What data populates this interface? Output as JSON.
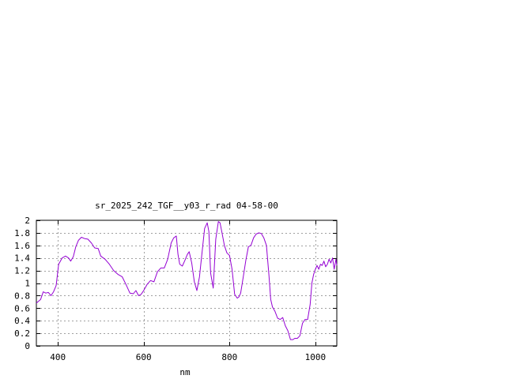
{
  "chart_data": {
    "type": "line",
    "title": "sr_2025_242_TGF__y03_r_rad 04-58-00",
    "xlabel": "nm",
    "ylabel": "",
    "xlim": [
      350,
      1050
    ],
    "ylim": [
      0,
      2
    ],
    "xticks": [
      "400",
      "600",
      "800",
      "1000"
    ],
    "xtick_values": [
      400,
      600,
      800,
      1000
    ],
    "yticks": [
      "0",
      "0.2",
      "0.4",
      "0.6",
      "0.8",
      "1",
      "1.2",
      "1.4",
      "1.6",
      "1.8",
      "2"
    ],
    "ytick_values": [
      0,
      0.2,
      0.4,
      0.6,
      0.8,
      1.0,
      1.2,
      1.4,
      1.6,
      1.8,
      2.0
    ],
    "grid": true,
    "line_color": "#9400d3",
    "series": [
      {
        "x": [
          350,
          360,
          366,
          372,
          378,
          384,
          390,
          396,
          402,
          410,
          418,
          425,
          430,
          436,
          442,
          448,
          455,
          462,
          470,
          478,
          486,
          494,
          500,
          510,
          520,
          530,
          540,
          550,
          560,
          568,
          576,
          582,
          588,
          594,
          600,
          608,
          616,
          624,
          632,
          640,
          648,
          656,
          664,
          670,
          676,
          680,
          684,
          690,
          696,
          702,
          706,
          712,
          718,
          724,
          730,
          736,
          742,
          748,
          752,
          756,
          762,
          768,
          774,
          778,
          782,
          788,
          794,
          800,
          806,
          812,
          818,
          822,
          826,
          832,
          838,
          844,
          850,
          856,
          862,
          868,
          874,
          880,
          886,
          892,
          896,
          900,
          906,
          912,
          918,
          924,
          930,
          936,
          942,
          948,
          952,
          958,
          964,
          970,
          976,
          982,
          988,
          992,
          996,
          1000,
          1004,
          1008,
          1012,
          1016,
          1020,
          1024,
          1028,
          1032,
          1036,
          1040,
          1044,
          1048,
          1050
        ],
        "y": [
          0.68,
          0.74,
          0.86,
          0.84,
          0.85,
          0.8,
          0.86,
          0.96,
          1.3,
          1.4,
          1.43,
          1.4,
          1.35,
          1.42,
          1.58,
          1.68,
          1.73,
          1.71,
          1.7,
          1.64,
          1.56,
          1.55,
          1.43,
          1.38,
          1.3,
          1.2,
          1.14,
          1.1,
          0.96,
          0.84,
          0.83,
          0.88,
          0.8,
          0.82,
          0.88,
          0.98,
          1.04,
          1.02,
          1.18,
          1.24,
          1.24,
          1.38,
          1.64,
          1.72,
          1.75,
          1.46,
          1.3,
          1.27,
          1.36,
          1.46,
          1.5,
          1.32,
          1.02,
          0.88,
          1.1,
          1.48,
          1.87,
          1.96,
          1.82,
          1.16,
          0.92,
          1.7,
          1.98,
          1.96,
          1.82,
          1.6,
          1.48,
          1.44,
          1.22,
          0.82,
          0.76,
          0.78,
          0.84,
          1.1,
          1.36,
          1.58,
          1.6,
          1.72,
          1.78,
          1.8,
          1.79,
          1.72,
          1.6,
          1.12,
          0.74,
          0.62,
          0.55,
          0.44,
          0.42,
          0.45,
          0.32,
          0.24,
          0.1,
          0.1,
          0.12,
          0.12,
          0.16,
          0.36,
          0.42,
          0.42,
          0.66,
          1.0,
          1.14,
          1.22,
          1.28,
          1.22,
          1.3,
          1.28,
          1.35,
          1.26,
          1.3,
          1.38,
          1.32,
          1.4,
          1.22,
          1.38,
          1.28
        ]
      }
    ]
  }
}
